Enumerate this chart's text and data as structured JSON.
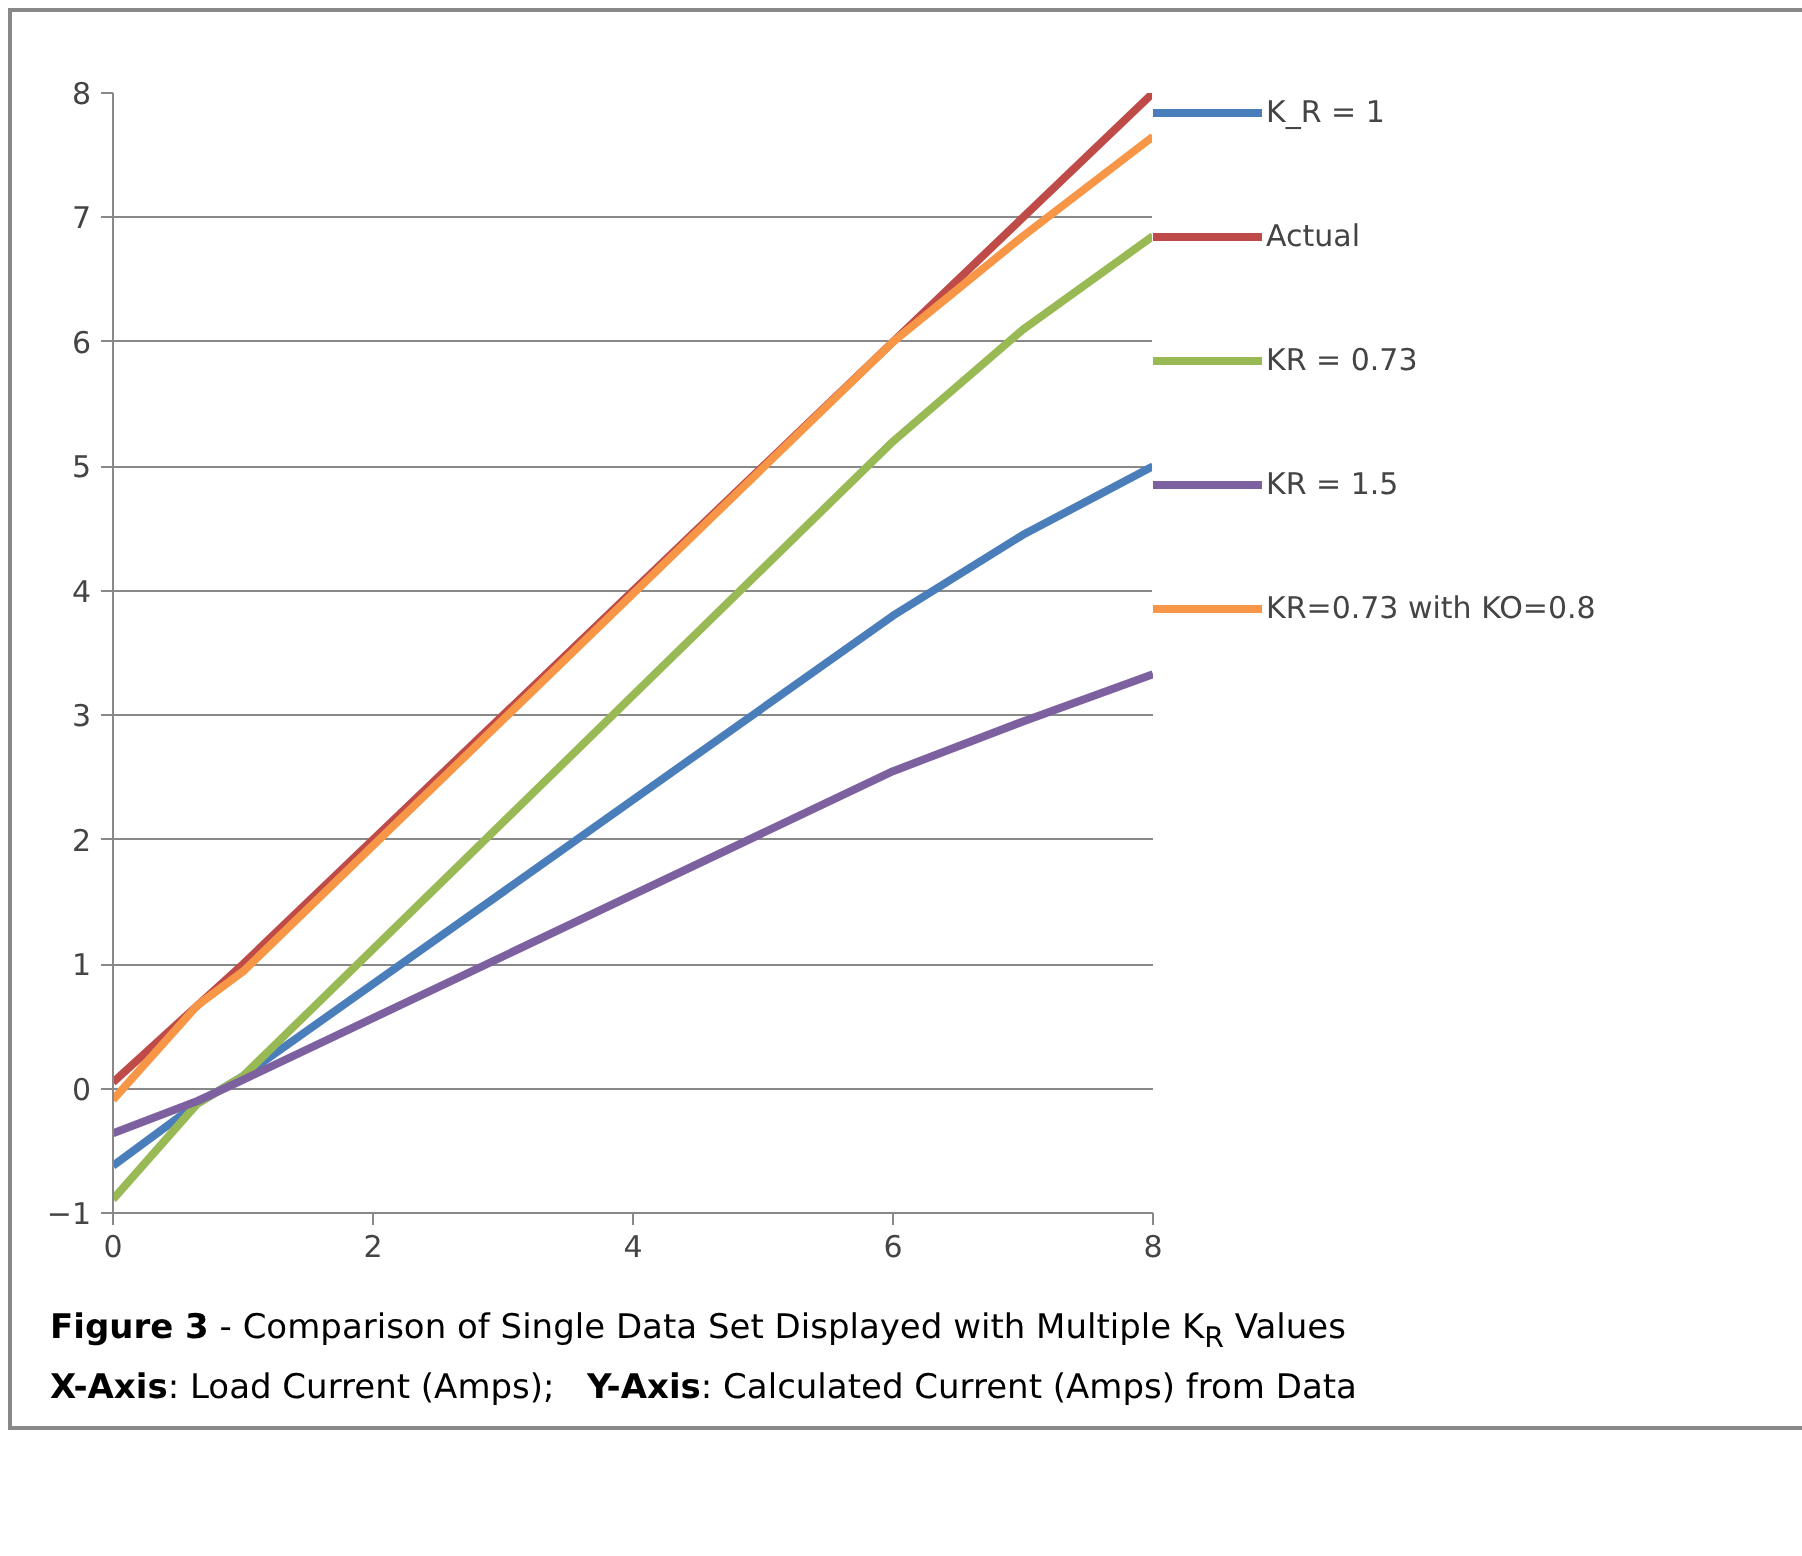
{
  "chart_data": {
    "type": "line",
    "series": [
      {
        "name": "K_R = 1",
        "color": "#4a7ebb",
        "x": [
          0,
          0.65,
          1,
          6,
          7,
          8
        ],
        "values": [
          -0.62,
          -0.12,
          0.1,
          3.8,
          4.45,
          5.0
        ]
      },
      {
        "name": "Actual",
        "color": "#be4b48",
        "x": [
          0,
          1,
          6,
          7,
          8
        ],
        "values": [
          0.05,
          1,
          6,
          7,
          8
        ]
      },
      {
        "name": "KR = 0.73",
        "color": "#98b954",
        "x": [
          0,
          0.65,
          1,
          6,
          7,
          8
        ],
        "values": [
          -0.89,
          -0.12,
          0.1,
          5.2,
          6.1,
          6.85
        ]
      },
      {
        "name": "KR = 1.5",
        "color": "#7d60a0",
        "x": [
          0,
          0.65,
          1,
          6,
          7,
          8
        ],
        "values": [
          -0.36,
          -0.1,
          0.07,
          2.55,
          2.95,
          3.33
        ]
      },
      {
        "name": "KR=0.73 with KO=0.8",
        "color": "#f79646",
        "x": [
          0,
          0.65,
          1,
          6,
          7,
          8
        ],
        "values": [
          -0.09,
          0.67,
          0.94,
          6.0,
          6.85,
          7.65
        ]
      }
    ],
    "xlim": [
      0,
      8
    ],
    "xticks": [
      0,
      2,
      4,
      6,
      8
    ],
    "ylim": [
      -1,
      8
    ],
    "yticks": [
      -1,
      0,
      1,
      2,
      3,
      4,
      5,
      6,
      7,
      8
    ],
    "grid": "y",
    "legend": "right",
    "marker": "none",
    "line_style": "solid",
    "annotations": [
      "Figure 3 - Comparison of Single Data Set Displayed with Multiple K$_{R}$ Values",
      "X-Axis: Load Current (Amps);   Y-Axis: Calculated Current (Amps) from Data"
    ]
  }
}
